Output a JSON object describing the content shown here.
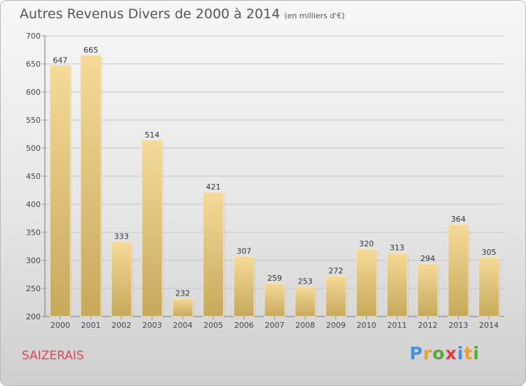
{
  "title": "Autres Revenus Divers de 2000 à 2014",
  "subtitle": "(en milliers d'€)",
  "commune": "SAIZERAIS",
  "logo": {
    "text": "Proxiti",
    "letters": [
      {
        "ch": "P",
        "color": "#4a90d9"
      },
      {
        "ch": "r",
        "color": "#e8a126"
      },
      {
        "ch": "o",
        "color": "#5aa83c"
      },
      {
        "ch": "x",
        "color": "#e63946"
      },
      {
        "ch": "i",
        "color": "#4a90d9"
      },
      {
        "ch": "t",
        "color": "#e8a126"
      },
      {
        "ch": "i",
        "color": "#5aa83c"
      }
    ]
  },
  "colors": {
    "commune": "#d94b5c",
    "bar_top": "#f5da98",
    "bar_bottom": "#c7a95c"
  },
  "chart_data": {
    "type": "bar",
    "title": "Autres Revenus Divers de 2000 à 2014",
    "subtitle": "(en milliers d'€)",
    "categories": [
      "2000",
      "2001",
      "2002",
      "2003",
      "2004",
      "2005",
      "2006",
      "2007",
      "2008",
      "2009",
      "2010",
      "2011",
      "2012",
      "2013",
      "2014"
    ],
    "values": [
      647,
      665,
      333,
      514,
      232,
      421,
      307,
      259,
      253,
      272,
      320,
      313,
      294,
      364,
      305
    ],
    "ylim": [
      200,
      700
    ],
    "yticks": [
      200,
      250,
      300,
      350,
      400,
      450,
      500,
      550,
      600,
      650,
      700
    ],
    "grid": true,
    "data_labels": true
  }
}
